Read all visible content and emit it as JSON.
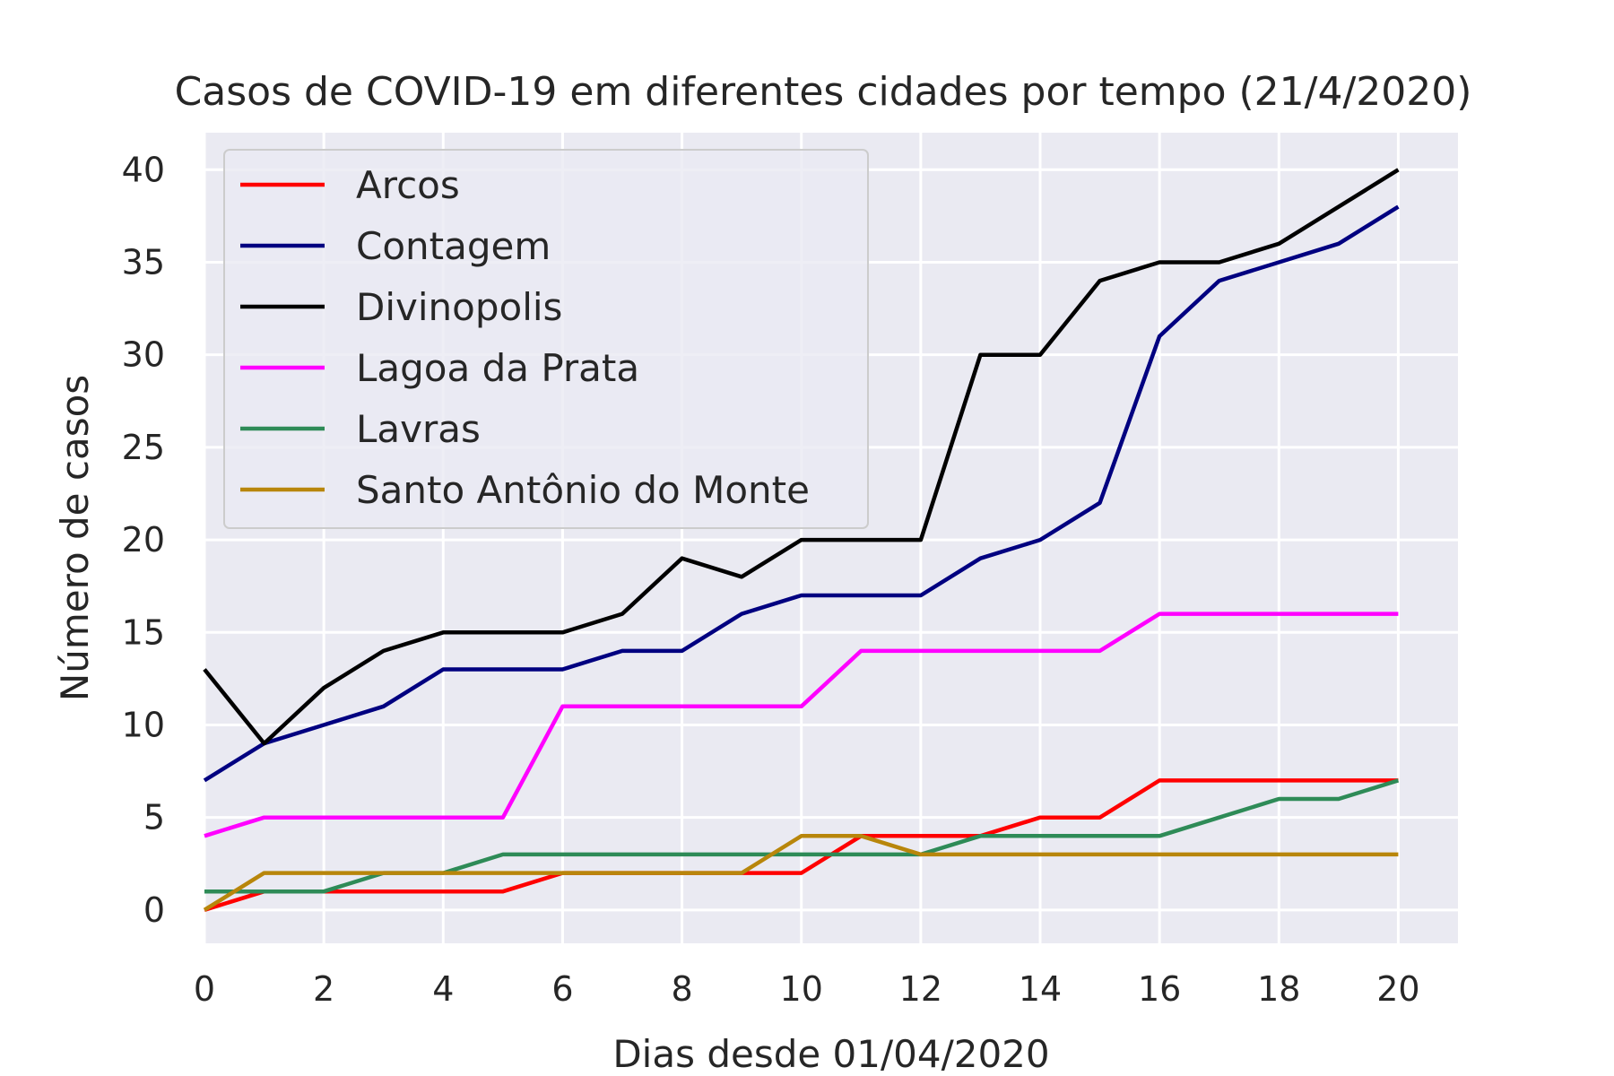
{
  "chart_data": {
    "type": "line",
    "title": "Casos de COVID-19 em diferentes cidades por tempo (21/4/2020)",
    "xlabel": "Dias desde 01/04/2020",
    "ylabel": "Número de casos",
    "xlim": [
      0,
      21
    ],
    "ylim": [
      -1.8,
      42
    ],
    "x_ticks": [
      0,
      2,
      4,
      6,
      8,
      10,
      12,
      14,
      16,
      18,
      20
    ],
    "y_ticks": [
      0,
      5,
      10,
      15,
      20,
      25,
      30,
      35,
      40
    ],
    "grid": true,
    "legend_position": "top-left",
    "background_color": "#eaeaf2",
    "x": [
      0,
      1,
      2,
      3,
      4,
      5,
      6,
      7,
      8,
      9,
      10,
      11,
      12,
      13,
      14,
      15,
      16,
      17,
      18,
      19,
      20
    ],
    "series": [
      {
        "name": "Arcos",
        "color": "#ff0000",
        "values": [
          0,
          1,
          1,
          1,
          1,
          1,
          2,
          2,
          2,
          2,
          2,
          4,
          4,
          4,
          5,
          5,
          7,
          7,
          7,
          7,
          7
        ]
      },
      {
        "name": "Contagem",
        "color": "#000080",
        "values": [
          7,
          9,
          10,
          11,
          13,
          13,
          13,
          14,
          14,
          16,
          17,
          17,
          17,
          19,
          20,
          22,
          31,
          34,
          35,
          36,
          38
        ]
      },
      {
        "name": "Divinopolis",
        "color": "#000000",
        "values": [
          13,
          9,
          12,
          14,
          15,
          15,
          15,
          16,
          19,
          18,
          20,
          20,
          20,
          30,
          30,
          34,
          35,
          35,
          36,
          38,
          40
        ]
      },
      {
        "name": "Lagoa da Prata",
        "color": "#ff00ff",
        "values": [
          4,
          5,
          5,
          5,
          5,
          5,
          11,
          11,
          11,
          11,
          11,
          14,
          14,
          14,
          14,
          14,
          16,
          16,
          16,
          16,
          16
        ]
      },
      {
        "name": "Lavras",
        "color": "#2e8b57",
        "values": [
          1,
          1,
          1,
          2,
          2,
          3,
          3,
          3,
          3,
          3,
          3,
          3,
          3,
          4,
          4,
          4,
          4,
          5,
          6,
          6,
          7
        ]
      },
      {
        "name": "Santo Antônio do Monte",
        "color": "#b8860b",
        "values": [
          0,
          2,
          2,
          2,
          2,
          2,
          2,
          2,
          2,
          2,
          4,
          4,
          3,
          3,
          3,
          3,
          3,
          3,
          3,
          3,
          3
        ]
      }
    ]
  }
}
